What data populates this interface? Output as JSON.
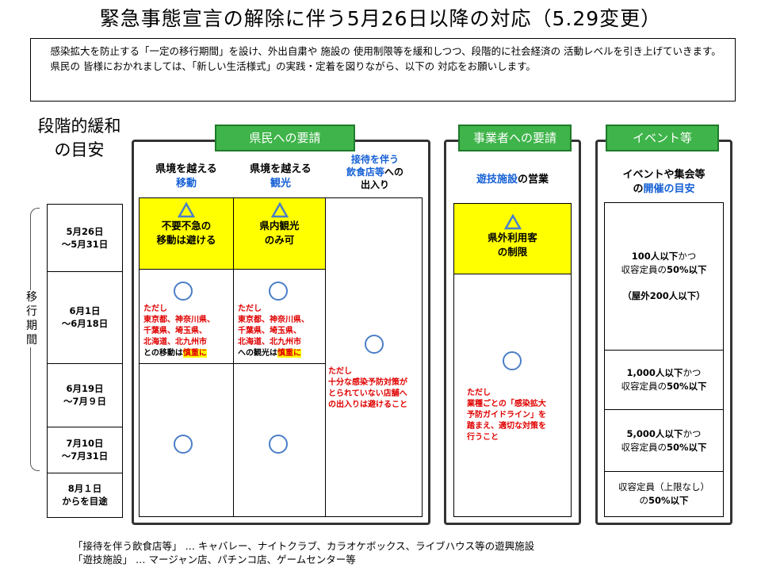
{
  "title": "緊急事態宣言の解除に伴う5月26日以降の対応（5.29変更）",
  "intro": {
    "line1": "感染拡大を防止する「一定の移行期間」を設け、外出自粛や 施設の 使用制限等を緩和しつつ、段階的に社会経済の 活動レベルを引き上げていきます。",
    "line2": "県民の 皆様におかれましては、「新しい生活様式」の実践・定着を図りながら、以下の 対応をお願いします。"
  },
  "guide": {
    "line1": "段階的緩和",
    "line2": "の目安"
  },
  "period_label": "移行期間",
  "dates": [
    {
      "a": "5月26日",
      "b": "～5月31日"
    },
    {
      "a": "6月1日",
      "b": "～6月18日"
    },
    {
      "a": "6月19日",
      "b": "～7月９日"
    },
    {
      "a": "7月10日",
      "b": "～7月31日"
    },
    {
      "a": "8月１日",
      "b": "からを目途"
    }
  ],
  "residents": {
    "tab": "県民への要請",
    "col1": {
      "line1": "県境を越える",
      "line2": "移動"
    },
    "col2": {
      "line1": "県境を越える",
      "line2": "観光"
    },
    "col3": {
      "line1": "接待を伴う",
      "line2a": "飲食店等",
      "line2b": "への",
      "line3": "出入り"
    },
    "move_box": {
      "line1": "不要不急の",
      "line2": "移動は避ける"
    },
    "sight_box": {
      "line1": "県内観光",
      "line2": "のみ可"
    },
    "move_note": {
      "l1": "ただし",
      "l2": "東京都、神奈川県、",
      "l3": "千葉県、埼玉県、",
      "l4": "北海道、北九州市",
      "l5a": "との移動は",
      "l5b": "慎重に"
    },
    "sight_note": {
      "l1": "ただし",
      "l2": "東京都、神奈川県、",
      "l3": "千葉県、埼玉県、",
      "l4": "北海道、北九州市",
      "l5a": "への観光は",
      "l5b": "慎重に"
    },
    "venue_note": {
      "l1": "ただし",
      "l2": "十分な感染予防対策が",
      "l3": "とられていない店舗へ",
      "l4": "の出入りは避けること"
    }
  },
  "business": {
    "tab": "事業者への要請",
    "head_a": "遊技施設",
    "head_b": "の営業",
    "box": {
      "line1": "県外利用客",
      "line2": "の制限"
    },
    "note": {
      "l1": "ただし",
      "l2": "業種ごとの「感染拡大",
      "l3": "予防ガイドライン」を",
      "l4": "踏まえ、適切な対策を",
      "l5": "行うこと"
    }
  },
  "events": {
    "tab": "イベント等",
    "head1": "イベントや集会等",
    "head2a": "の",
    "head2b": "開催の目安",
    "cell1": {
      "l1a": "100人以下",
      "l1b": "かつ",
      "l2a": "収容定員の",
      "l2b": "50%以下",
      "l3": "（屋外200人以下）"
    },
    "cell2": {
      "l1a": "1,000人以下",
      "l1b": "かつ",
      "l2a": "収容定員の",
      "l2b": "50%以下"
    },
    "cell3": {
      "l1a": "5,000人以下",
      "l1b": "かつ",
      "l2a": "収容定員の",
      "l2b": "50%以下"
    },
    "cell4": {
      "l1": "収容定員（上限なし）",
      "l2a": "の",
      "l2b": "50%以下"
    }
  },
  "footnotes": [
    "「接待を伴う飲食店等」 … キャバレー、ナイトクラブ、カラオケボックス、ライブハウス等の遊興施設",
    "「遊技施設」 … マージャン店、パチンコ店、ゲームセンター等"
  ],
  "colors": {
    "green": "#3fb44a",
    "yellow": "#ffff00",
    "blue": "#1560d6",
    "red": "#e00000",
    "circle": "#4a7ec8"
  }
}
